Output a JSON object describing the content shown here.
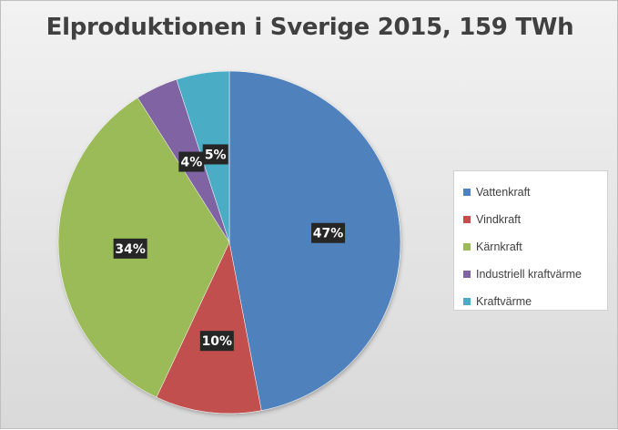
{
  "chart_data": {
    "type": "pie",
    "title": "Elproduktionen i Sverige 2015, 159 TWh",
    "categories": [
      "Vattenkraft",
      "Vindkraft",
      "Kärnkraft",
      "Industriell kraftvärme",
      "Kraftvärme"
    ],
    "values": [
      47,
      10,
      34,
      4,
      5
    ],
    "data_labels": [
      "47%",
      "10%",
      "34%",
      "4%",
      "5%"
    ],
    "colors": [
      "#4f81bd",
      "#c0504d",
      "#9bbb59",
      "#8064a2",
      "#4bacc6"
    ],
    "legend": {
      "placement": "right",
      "entries": [
        "Vattenkraft",
        "Vindkraft",
        "Kärnkraft",
        "Industriell kraftvärme",
        "Kraftvärme"
      ]
    }
  }
}
